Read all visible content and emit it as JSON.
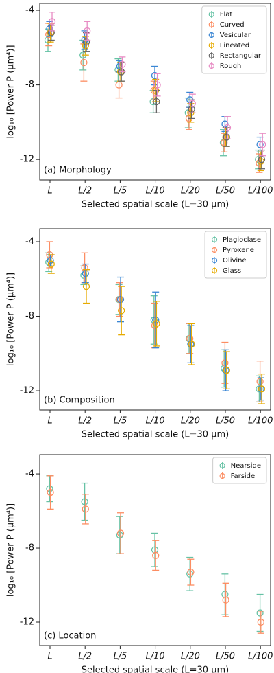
{
  "chart_data": [
    {
      "type": "errorbar",
      "annotation": "(a) Morphology",
      "ylabel": "log₁₀ [Power P (μm⁴)]",
      "xlabel": "Selected spatial scale (L=30 μm)",
      "categories": [
        "L",
        "L/2",
        "L/5",
        "L/10",
        "L/20",
        "L/50",
        "L/100"
      ],
      "ylim": [
        -13.1,
        -3.63
      ],
      "yticks": [
        -4,
        -8,
        -12
      ],
      "legend": "upper right",
      "series": [
        {
          "name": "Flat",
          "color": "#66c2a5",
          "values": [
            -5.6,
            -6.4,
            -7.2,
            -8.9,
            -9.5,
            -11.1,
            -12.0
          ],
          "errors": [
            0.6,
            0.8,
            0.6,
            0.6,
            0.8,
            0.7,
            0.5
          ]
        },
        {
          "name": "Curved",
          "color": "#fc8d62",
          "values": [
            -5.3,
            -6.8,
            -8.0,
            -8.3,
            -9.8,
            -11.1,
            -12.2
          ],
          "errors": [
            0.6,
            1.0,
            0.7,
            0.5,
            0.6,
            0.5,
            0.5
          ]
        },
        {
          "name": "Vesicular",
          "color": "#3a86d4",
          "values": [
            -5.0,
            -5.6,
            -7.0,
            -7.5,
            -8.8,
            -10.1,
            -11.2
          ],
          "errors": [
            0.4,
            0.5,
            0.3,
            0.5,
            0.4,
            0.4,
            0.4
          ]
        },
        {
          "name": "Lineated",
          "color": "#e6ab02",
          "values": [
            -5.2,
            -5.9,
            -7.3,
            -8.3,
            -9.5,
            -10.8,
            -12.1
          ],
          "errors": [
            0.5,
            0.5,
            0.5,
            0.6,
            0.5,
            0.5,
            0.5
          ]
        },
        {
          "name": "Rectangular",
          "color": "#666666",
          "values": [
            -5.2,
            -5.7,
            -7.3,
            -8.9,
            -9.3,
            -10.8,
            -12.0
          ],
          "errors": [
            0.4,
            0.5,
            0.5,
            0.6,
            0.5,
            0.5,
            0.5
          ]
        },
        {
          "name": "Rough",
          "color": "#e78ac3",
          "values": [
            -4.6,
            -5.1,
            -6.9,
            -8.0,
            -9.0,
            -10.3,
            -11.2
          ],
          "errors": [
            0.5,
            0.5,
            0.4,
            0.6,
            0.5,
            0.6,
            0.6
          ]
        }
      ]
    },
    {
      "type": "errorbar",
      "annotation": "(b) Composition",
      "ylabel": "log₁₀ [Power P (μm⁴)]",
      "xlabel": "Selected spatial scale (L=30 μm)",
      "categories": [
        "L",
        "L/2",
        "L/5",
        "L/10",
        "L/20",
        "L/50",
        "L/100"
      ],
      "ylim": [
        -13.03,
        -3.3
      ],
      "yticks": [
        -4,
        -8,
        -12
      ],
      "legend": "upper right",
      "series": [
        {
          "name": "Plagioclase",
          "color": "#66c2a5",
          "values": [
            -5.1,
            -5.8,
            -7.1,
            -8.2,
            -9.2,
            -10.8,
            -11.9
          ],
          "errors": [
            0.5,
            0.5,
            0.8,
            1.3,
            0.8,
            1.0,
            0.7
          ]
        },
        {
          "name": "Pyroxene",
          "color": "#fc8d62",
          "values": [
            -4.7,
            -5.4,
            -7.1,
            -8.5,
            -9.2,
            -10.5,
            -11.5
          ],
          "errors": [
            0.7,
            0.8,
            0.9,
            1.2,
            0.8,
            1.1,
            1.1
          ]
        },
        {
          "name": "Olivine",
          "color": "#3a86d4",
          "values": [
            -5.0,
            -5.7,
            -7.1,
            -8.2,
            -9.5,
            -10.9,
            -11.9
          ],
          "errors": [
            0.3,
            0.5,
            1.2,
            1.5,
            1.0,
            1.1,
            0.6
          ]
        },
        {
          "name": "Glass",
          "color": "#e6ab02",
          "values": [
            -5.2,
            -6.4,
            -7.7,
            -8.4,
            -9.5,
            -10.9,
            -11.9
          ],
          "errors": [
            0.5,
            0.9,
            1.3,
            1.2,
            1.1,
            1.0,
            0.8
          ]
        }
      ]
    },
    {
      "type": "errorbar",
      "annotation": "(c) Location",
      "ylabel": "log₁₀ [Power P (μm⁴)]",
      "xlabel": "Selected spatial scale (L=30 μm)",
      "categories": [
        "L",
        "L/2",
        "L/5",
        "L/10",
        "L/20",
        "L/50",
        "L/100"
      ],
      "ylim": [
        -13.26,
        -2.96
      ],
      "yticks": [
        -4,
        -8,
        -12
      ],
      "legend": "upper right",
      "series": [
        {
          "name": "Nearside",
          "color": "#66c2a5",
          "values": [
            -4.8,
            -5.5,
            -7.3,
            -8.1,
            -9.4,
            -10.5,
            -11.5
          ],
          "errors": [
            0.7,
            1.0,
            1.0,
            0.9,
            0.9,
            1.1,
            1.0
          ]
        },
        {
          "name": "Farside",
          "color": "#fc8d62",
          "values": [
            -5.0,
            -5.9,
            -7.2,
            -8.4,
            -9.3,
            -10.8,
            -12.0
          ],
          "errors": [
            0.9,
            0.8,
            1.1,
            0.8,
            0.7,
            0.9,
            0.6
          ]
        }
      ]
    }
  ]
}
